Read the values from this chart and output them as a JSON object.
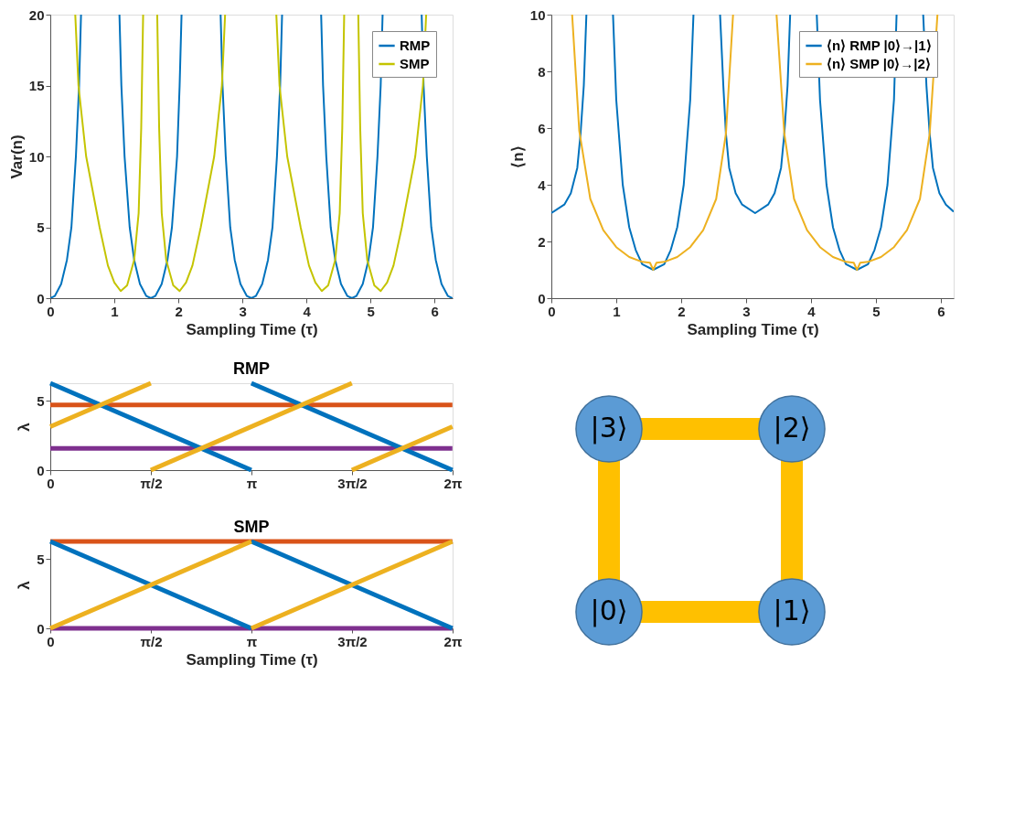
{
  "chart_data": [
    {
      "type": "line",
      "xlabel": "Sampling Time (τ)",
      "ylabel": "Var(n)",
      "xlim": [
        0,
        6.2832
      ],
      "ylim": [
        0,
        20
      ],
      "xticks": [
        0,
        1,
        2,
        3,
        4,
        5,
        6
      ],
      "yticks": [
        0,
        5,
        10,
        15,
        20
      ],
      "grid": false,
      "legend": "top right",
      "series": [
        {
          "name": "RMP",
          "color": "#0072bd",
          "x": [
            0,
            0.07,
            0.17,
            0.26,
            0.33,
            0.4,
            0.45,
            0.48,
            0.78,
            1.08,
            1.11,
            1.16,
            1.24,
            1.31,
            1.4,
            1.5,
            1.57,
            1.64,
            1.74,
            1.83,
            1.9,
            1.98,
            2.02,
            2.05,
            2.35,
            2.66,
            2.69,
            2.74,
            2.81,
            2.88,
            2.97,
            3.07,
            3.14,
            3.21,
            3.31,
            3.4,
            3.47,
            3.54,
            3.59,
            3.62,
            3.9,
            4.23,
            4.26,
            4.31,
            4.38,
            4.45,
            4.54,
            4.64,
            4.71,
            4.78,
            4.88,
            4.97,
            5.04,
            5.11,
            5.16,
            5.19,
            5.5,
            5.8,
            5.83,
            5.88,
            5.95,
            6.02,
            6.11,
            6.21,
            6.28
          ],
          "values": [
            0,
            0.15,
            1,
            2.7,
            5,
            10,
            15,
            20,
            null,
            20,
            15,
            10,
            5,
            2.7,
            1,
            0.15,
            0,
            0.15,
            1,
            2.7,
            5,
            10,
            15,
            20,
            null,
            20,
            15,
            10,
            5,
            2.7,
            1,
            0.15,
            0,
            0.15,
            1,
            2.7,
            5,
            10,
            15,
            20,
            null,
            20,
            15,
            10,
            5,
            2.7,
            1,
            0.15,
            0,
            0.15,
            1,
            2.7,
            5,
            10,
            15,
            20,
            null,
            20,
            15,
            10,
            5,
            2.7,
            1,
            0.15,
            0
          ]
        },
        {
          "name": "SMP",
          "color": "#c4c400",
          "x": [
            0.39,
            0.44,
            0.56,
            0.77,
            0.9,
            1.0,
            1.1,
            1.2,
            1.31,
            1.38,
            1.42,
            1.45,
            1.56,
            1.67,
            1.7,
            1.74,
            1.81,
            1.92,
            2.02,
            2.12,
            2.22,
            2.35,
            2.56,
            2.68,
            2.73,
            3.1,
            3.53,
            3.58,
            3.7,
            3.91,
            4.04,
            4.14,
            4.24,
            4.34,
            4.45,
            4.52,
            4.56,
            4.59,
            4.7,
            4.81,
            4.84,
            4.88,
            4.95,
            5.06,
            5.16,
            5.26,
            5.36,
            5.49,
            5.7,
            5.82,
            5.87
          ],
          "values": [
            20,
            15,
            10,
            5,
            2.3,
            1.1,
            0.5,
            0.9,
            2.7,
            6,
            12,
            20,
            null,
            20,
            12,
            6,
            2.7,
            0.9,
            0.5,
            1.1,
            2.3,
            5,
            10,
            15,
            20,
            null,
            20,
            15,
            10,
            5,
            2.3,
            1.1,
            0.5,
            0.9,
            2.7,
            6,
            12,
            20,
            null,
            20,
            12,
            6,
            2.7,
            0.9,
            0.5,
            1.1,
            2.3,
            5,
            10,
            15,
            20
          ]
        }
      ]
    },
    {
      "type": "line",
      "xlabel": "Sampling Time (τ)",
      "ylabel": "⟨n⟩",
      "xlim": [
        0,
        6.2
      ],
      "ylim": [
        0,
        10
      ],
      "xticks": [
        0,
        1,
        2,
        3,
        4,
        5,
        6
      ],
      "yticks": [
        0,
        2,
        4,
        6,
        8,
        10
      ],
      "grid": false,
      "legend": "top right",
      "series": [
        {
          "name": "⟨n⟩ RMP |0⟩→|1⟩",
          "color": "#0072bd",
          "x": [
            0,
            0.2,
            0.3,
            0.4,
            0.45,
            0.5,
            0.54,
            0.75,
            0.95,
            1.0,
            1.1,
            1.2,
            1.3,
            1.4,
            1.57,
            1.74,
            1.84,
            1.94,
            2.04,
            2.14,
            2.19,
            2.4,
            2.6,
            2.65,
            2.69,
            2.74,
            2.84,
            2.94,
            3.14,
            3.34,
            3.44,
            3.54,
            3.59,
            3.64,
            3.68,
            3.9,
            4.09,
            4.14,
            4.24,
            4.34,
            4.44,
            4.54,
            4.71,
            4.88,
            4.98,
            5.08,
            5.18,
            5.28,
            5.32,
            5.5,
            5.73,
            5.78,
            5.83,
            5.88,
            5.98,
            6.08,
            6.2
          ],
          "values": [
            3,
            3.3,
            3.7,
            4.6,
            5.8,
            7.5,
            10,
            null,
            10,
            7,
            4,
            2.5,
            1.7,
            1.2,
            1,
            1.2,
            1.7,
            2.5,
            4,
            7,
            10,
            null,
            10,
            7.5,
            5.8,
            4.6,
            3.7,
            3.3,
            3,
            3.3,
            3.7,
            4.6,
            5.8,
            7.5,
            10,
            null,
            10,
            7,
            4,
            2.5,
            1.7,
            1.2,
            1,
            1.2,
            1.7,
            2.5,
            4,
            7,
            10,
            null,
            10,
            7.5,
            5.8,
            4.6,
            3.7,
            3.3,
            3.05
          ]
        },
        {
          "name": "⟨n⟩ SMP |0⟩→|2⟩",
          "color": "#edb120",
          "x": [
            0.32,
            0.43,
            0.6,
            0.8,
            1.0,
            1.2,
            1.4,
            1.52,
            1.57,
            1.62,
            1.74,
            1.94,
            2.14,
            2.34,
            2.54,
            2.69,
            2.8,
            3.1,
            3.47,
            3.59,
            3.74,
            3.94,
            4.14,
            4.34,
            4.54,
            4.66,
            4.71,
            4.76,
            4.88,
            5.08,
            5.28,
            5.48,
            5.68,
            5.83,
            5.95
          ],
          "values": [
            10,
            5.9,
            3.5,
            2.4,
            1.8,
            1.45,
            1.28,
            1.25,
            1.0,
            1.25,
            1.28,
            1.45,
            1.8,
            2.4,
            3.5,
            5.8,
            10,
            null,
            10,
            5.8,
            3.5,
            2.4,
            1.8,
            1.45,
            1.28,
            1.25,
            1.0,
            1.25,
            1.28,
            1.45,
            1.8,
            2.4,
            3.5,
            5.8,
            10
          ]
        }
      ]
    },
    {
      "type": "line",
      "title": "RMP",
      "ylabel": "λ",
      "xlim": [
        0,
        6.2832
      ],
      "ylim": [
        0,
        6.2832
      ],
      "xticks": [
        0,
        {
          "value": 1.5708,
          "label": "π/2"
        },
        {
          "value": 3.1416,
          "label": "π"
        },
        {
          "value": 4.7124,
          "label": "3π/2"
        },
        {
          "value": 6.2832,
          "label": "2π"
        }
      ],
      "yticks": [
        0,
        5
      ],
      "grid": false,
      "series": [
        {
          "color": "#d95319",
          "x": [
            0,
            6.28
          ],
          "values": [
            4.71,
            4.71
          ]
        },
        {
          "color": "#7e2f8e",
          "x": [
            0,
            6.28
          ],
          "values": [
            1.57,
            1.57
          ]
        },
        {
          "color": "#0072bd",
          "x": [
            0,
            3.14
          ],
          "values": [
            6.28,
            0
          ]
        },
        {
          "color": "#0072bd",
          "x": [
            3.14,
            6.28
          ],
          "values": [
            6.28,
            0
          ]
        },
        {
          "color": "#edb120",
          "x": [
            0,
            1.57
          ],
          "values": [
            3.14,
            6.28
          ]
        },
        {
          "color": "#edb120",
          "x": [
            1.57,
            4.71
          ],
          "values": [
            0,
            6.28
          ]
        },
        {
          "color": "#edb120",
          "x": [
            4.71,
            6.28
          ],
          "values": [
            0,
            3.14
          ]
        }
      ]
    },
    {
      "type": "line",
      "title": "SMP",
      "xlabel": "Sampling Time (τ)",
      "ylabel": "λ",
      "xlim": [
        0,
        6.2832
      ],
      "ylim": [
        0,
        6.2832
      ],
      "xticks": [
        0,
        {
          "value": 1.5708,
          "label": "π/2"
        },
        {
          "value": 3.1416,
          "label": "π"
        },
        {
          "value": 4.7124,
          "label": "3π/2"
        },
        {
          "value": 6.2832,
          "label": "2π"
        }
      ],
      "yticks": [
        0,
        5
      ],
      "grid": false,
      "series": [
        {
          "color": "#d95319",
          "x": [
            0,
            6.28
          ],
          "values": [
            6.28,
            6.28
          ]
        },
        {
          "color": "#7e2f8e",
          "x": [
            0,
            6.28
          ],
          "values": [
            0,
            0
          ]
        },
        {
          "color": "#0072bd",
          "x": [
            0,
            3.14
          ],
          "values": [
            6.28,
            0
          ]
        },
        {
          "color": "#0072bd",
          "x": [
            3.14,
            6.28
          ],
          "values": [
            6.28,
            0
          ]
        },
        {
          "color": "#edb120",
          "x": [
            0,
            3.14
          ],
          "values": [
            0,
            6.28
          ]
        },
        {
          "color": "#edb120",
          "x": [
            3.14,
            6.28
          ],
          "values": [
            0,
            6.28
          ]
        }
      ]
    },
    {
      "type": "other",
      "annotations": [
        "|3⟩",
        "|2⟩",
        "|0⟩",
        "|1⟩"
      ]
    }
  ]
}
